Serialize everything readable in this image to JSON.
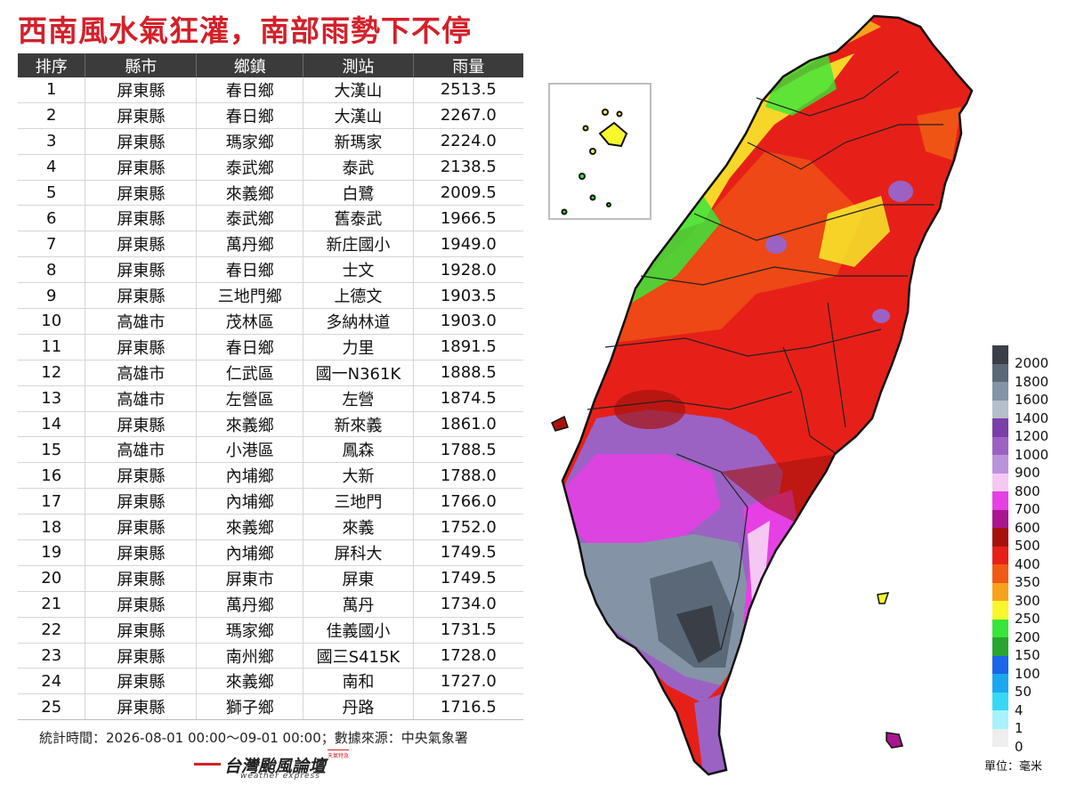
{
  "title": "西南風水氣狂灌，南部雨勢下不停",
  "table": {
    "headers": [
      "排序",
      "縣市",
      "鄉鎮",
      "測站",
      "雨量"
    ],
    "rows": [
      [
        "1",
        "屏東縣",
        "春日鄉",
        "大漢山",
        "2513.5"
      ],
      [
        "2",
        "屏東縣",
        "春日鄉",
        "大漢山",
        "2267.0"
      ],
      [
        "3",
        "屏東縣",
        "瑪家鄉",
        "新瑪家",
        "2224.0"
      ],
      [
        "4",
        "屏東縣",
        "泰武鄉",
        "泰武",
        "2138.5"
      ],
      [
        "5",
        "屏東縣",
        "來義鄉",
        "白鷺",
        "2009.5"
      ],
      [
        "6",
        "屏東縣",
        "泰武鄉",
        "舊泰武",
        "1966.5"
      ],
      [
        "7",
        "屏東縣",
        "萬丹鄉",
        "新庄國小",
        "1949.0"
      ],
      [
        "8",
        "屏東縣",
        "春日鄉",
        "士文",
        "1928.0"
      ],
      [
        "9",
        "屏東縣",
        "三地門鄉",
        "上德文",
        "1903.5"
      ],
      [
        "10",
        "高雄市",
        "茂林區",
        "多納林道",
        "1903.0"
      ],
      [
        "11",
        "屏東縣",
        "春日鄉",
        "力里",
        "1891.5"
      ],
      [
        "12",
        "高雄市",
        "仁武區",
        "國一N361K",
        "1888.5"
      ],
      [
        "13",
        "高雄市",
        "左營區",
        "左營",
        "1874.5"
      ],
      [
        "14",
        "屏東縣",
        "來義鄉",
        "新來義",
        "1861.0"
      ],
      [
        "15",
        "高雄市",
        "小港區",
        "鳳森",
        "1788.5"
      ],
      [
        "16",
        "屏東縣",
        "內埔鄉",
        "大新",
        "1788.0"
      ],
      [
        "17",
        "屏東縣",
        "內埔鄉",
        "三地門",
        "1766.0"
      ],
      [
        "18",
        "屏東縣",
        "來義鄉",
        "來義",
        "1752.0"
      ],
      [
        "19",
        "屏東縣",
        "內埔鄉",
        "屏科大",
        "1749.5"
      ],
      [
        "20",
        "屏東縣",
        "屏東市",
        "屏東",
        "1749.5"
      ],
      [
        "21",
        "屏東縣",
        "萬丹鄉",
        "萬丹",
        "1734.0"
      ],
      [
        "22",
        "屏東縣",
        "瑪家鄉",
        "佳義國小",
        "1731.5"
      ],
      [
        "23",
        "屏東縣",
        "南州鄉",
        "國三S415K",
        "1728.0"
      ],
      [
        "24",
        "屏東縣",
        "來義鄉",
        "南和",
        "1727.0"
      ],
      [
        "25",
        "屏東縣",
        "獅子鄉",
        "丹路",
        "1716.5"
      ]
    ]
  },
  "footer": "統計時間：2026-08-01 00:00～09-01 00:00；數據來源：中央氣象署",
  "logo": {
    "name": "台灣颱風論壇",
    "subtitle": "weather express",
    "tag": "天氣特急"
  },
  "legend": {
    "unit": "單位：毫米",
    "items": [
      {
        "label": "2000",
        "color": "#3a3f47"
      },
      {
        "label": "1800",
        "color": "#5a6878"
      },
      {
        "label": "1600",
        "color": "#8494a6"
      },
      {
        "label": "1400",
        "color": "#b5bfcb"
      },
      {
        "label": "1200",
        "color": "#7b3fa8"
      },
      {
        "label": "1000",
        "color": "#9b62c4"
      },
      {
        "label": "900",
        "color": "#bb93dc"
      },
      {
        "label": "800",
        "color": "#f4c8f2"
      },
      {
        "label": "700",
        "color": "#e640e4"
      },
      {
        "label": "600",
        "color": "#a8158f"
      },
      {
        "label": "500",
        "color": "#a5120e"
      },
      {
        "label": "400",
        "color": "#e62018"
      },
      {
        "label": "350",
        "color": "#f05a14"
      },
      {
        "label": "300",
        "color": "#f7a21c"
      },
      {
        "label": "250",
        "color": "#f8f72c"
      },
      {
        "label": "200",
        "color": "#38e63a"
      },
      {
        "label": "150",
        "color": "#27a52f"
      },
      {
        "label": "100",
        "color": "#1a66e8"
      },
      {
        "label": "50",
        "color": "#1aa8f0"
      },
      {
        "label": "4",
        "color": "#38d8f5"
      },
      {
        "label": "1",
        "color": "#a8f2fb"
      },
      {
        "label": "0",
        "color": "#eeeeee"
      }
    ]
  }
}
